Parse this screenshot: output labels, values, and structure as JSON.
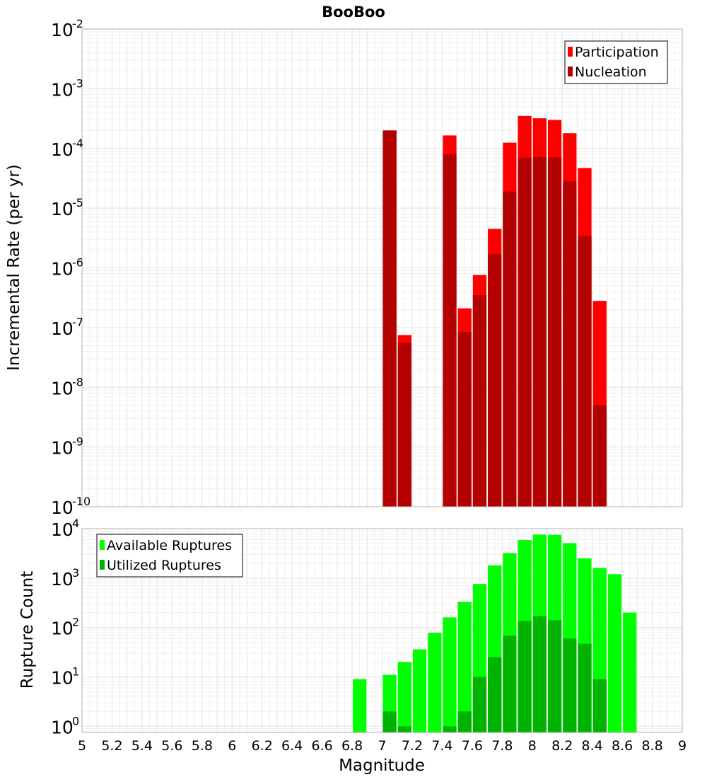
{
  "chart_data": [
    {
      "type": "bar",
      "title": "BooBoo",
      "xlabel": "",
      "ylabel": "Incremental Rate (per yr)",
      "xlim": [
        5,
        9
      ],
      "ylim": [
        1e-10,
        0.01
      ],
      "yscale": "log",
      "grid": true,
      "legend_position": "top-right",
      "bin_width": 0.1,
      "series": [
        {
          "name": "Participation",
          "color": "#ff0000",
          "x": [
            7.05,
            7.15,
            7.45,
            7.55,
            7.65,
            7.75,
            7.85,
            7.95,
            8.05,
            8.15,
            8.25,
            8.35,
            8.45
          ],
          "values": [
            0.0002,
            7.5e-08,
            0.000165,
            2.1e-07,
            7.6e-07,
            4.5e-06,
            0.000125,
            0.00035,
            0.00032,
            0.0003,
            0.00018,
            4.7e-05,
            2.8e-07
          ]
        },
        {
          "name": "Nucleation",
          "color": "#b30000",
          "x": [
            7.05,
            7.15,
            7.45,
            7.55,
            7.65,
            7.75,
            7.85,
            7.95,
            8.05,
            8.15,
            8.25,
            8.35,
            8.45
          ],
          "values": [
            0.0002,
            5.5e-08,
            8e-05,
            8.5e-08,
            3.5e-07,
            1.7e-06,
            1.9e-05,
            7e-05,
            7.2e-05,
            7.1e-05,
            2.8e-05,
            3.4e-06,
            5e-09
          ]
        }
      ]
    },
    {
      "type": "bar",
      "title": "",
      "xlabel": "Magnitude",
      "ylabel": "Rupture Count",
      "xlim": [
        5,
        9
      ],
      "ylim": [
        0.75,
        10000
      ],
      "yscale": "log",
      "grid": true,
      "legend_position": "top-left",
      "bin_width": 0.1,
      "x_ticks": [
        "5",
        "5.2",
        "5.4",
        "5.6",
        "5.8",
        "6",
        "6.2",
        "6.4",
        "6.6",
        "6.8",
        "7",
        "7.2",
        "7.4",
        "7.6",
        "7.8",
        "8",
        "8.2",
        "8.4",
        "8.6",
        "8.8",
        "9"
      ],
      "series": [
        {
          "name": "Available Ruptures",
          "color": "#00ff00",
          "x": [
            6.85,
            7.05,
            7.15,
            7.25,
            7.35,
            7.45,
            7.55,
            7.65,
            7.75,
            7.85,
            7.95,
            8.05,
            8.15,
            8.25,
            8.35,
            8.45,
            8.55,
            8.65
          ],
          "values": [
            9,
            11,
            20,
            36,
            78,
            160,
            330,
            760,
            1800,
            3200,
            5900,
            7600,
            7500,
            5100,
            2500,
            1600,
            1200,
            200
          ]
        },
        {
          "name": "Utilized Ruptures",
          "color": "#00b300",
          "x": [
            7.05,
            7.15,
            7.45,
            7.55,
            7.65,
            7.75,
            7.85,
            7.95,
            8.05,
            8.15,
            8.25,
            8.35,
            8.45
          ],
          "values": [
            2,
            1,
            1,
            2,
            10,
            25,
            68,
            135,
            170,
            140,
            60,
            47,
            9
          ]
        }
      ]
    }
  ]
}
